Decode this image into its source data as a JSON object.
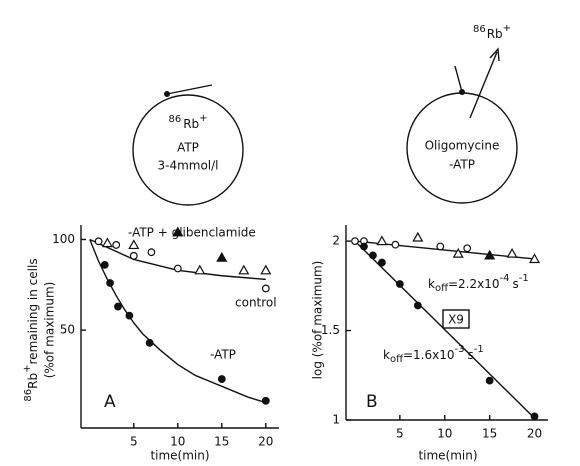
{
  "diagrams": [
    {
      "isotope": "86",
      "ion": "Rb",
      "charge": "+",
      "lines": [
        "ATP",
        "3-4mmol/l"
      ]
    },
    {
      "isotope": "86",
      "ion": "Rb",
      "charge": "+",
      "lines": [
        "Oligomycine",
        "-ATP"
      ],
      "released": {
        "isotope": "86",
        "ion": "Rb",
        "charge": "+"
      }
    }
  ],
  "chart_data": [
    {
      "type": "scatter",
      "panel": "A",
      "xlabel": "time(min)",
      "ylabel": {
        "isotope": "86",
        "ion": "Rb",
        "charge": "+",
        "text": "remaining in cells",
        "line2": "(%of maximum)"
      },
      "xlim": [
        -1,
        21.5
      ],
      "ylim": [
        -4,
        108
      ],
      "xticks": [
        5,
        10,
        15,
        20
      ],
      "yticks": [
        50,
        100
      ],
      "annotations": [
        "-ATP + glibenclamide",
        "control",
        "-ATP"
      ],
      "series": [
        {
          "name": "control",
          "marker": "circle-open",
          "x": [
            1,
            3,
            5,
            7,
            10,
            20
          ],
          "values": [
            99,
            97,
            91,
            93,
            84,
            73
          ]
        },
        {
          "marker": "triangle-open",
          "x": [
            2,
            5,
            12.5,
            17.5,
            20
          ],
          "values": [
            98,
            97,
            83,
            83,
            83
          ]
        },
        {
          "marker": "triangle-filled",
          "x": [
            10,
            15
          ],
          "values": [
            104,
            90
          ]
        },
        {
          "name": "-ATP",
          "marker": "circle-filled",
          "x": [
            1.7,
            2.3,
            3.2,
            4.5,
            6.8,
            15,
            20
          ],
          "values": [
            86,
            76,
            63,
            58,
            43,
            23,
            11
          ]
        }
      ],
      "fits": [
        {
          "x": [
            0,
            5,
            10,
            15,
            20
          ],
          "values": [
            100,
            89,
            83,
            80,
            78
          ]
        },
        {
          "x": [
            0,
            1,
            2,
            3,
            4,
            5,
            6,
            8,
            10,
            12,
            15,
            18,
            20
          ],
          "values": [
            100,
            88,
            78,
            69,
            61,
            54,
            48,
            39,
            31,
            25,
            19,
            13,
            10
          ]
        }
      ]
    },
    {
      "type": "scatter",
      "panel": "B",
      "xlabel": "time(min)",
      "ylabel": {
        "text": "log (%of maximum)"
      },
      "xlim": [
        -1,
        21.5
      ],
      "ylim": [
        1,
        2.09
      ],
      "xticks": [
        5,
        10,
        15,
        20
      ],
      "yticks": [
        1,
        1.5,
        2
      ],
      "annotations": [
        "X9"
      ],
      "rates": [
        {
          "k": "k",
          "sub": "off",
          "mantissa": "=2.2x10",
          "exp": "-4",
          "unit": "s",
          "unit_exp": "-1"
        },
        {
          "k": "k",
          "sub": "off",
          "mantissa": "=1.6x10",
          "exp": "-3",
          "unit": "s",
          "unit_exp": "-1"
        }
      ],
      "series": [
        {
          "marker": "circle-open",
          "x": [
            0,
            1,
            4.5,
            9.5,
            12.5
          ],
          "values": [
            2.0,
            2.0,
            1.98,
            1.97,
            1.96
          ]
        },
        {
          "marker": "triangle-open",
          "x": [
            3,
            7,
            11.5,
            17.5,
            20
          ],
          "values": [
            2.0,
            2.02,
            1.93,
            1.93,
            1.9
          ]
        },
        {
          "marker": "triangle-filled",
          "x": [
            15
          ],
          "values": [
            1.92
          ]
        },
        {
          "marker": "circle-filled",
          "x": [
            1,
            2,
            3,
            5,
            7,
            15,
            20
          ],
          "values": [
            1.97,
            1.92,
            1.88,
            1.76,
            1.64,
            1.22,
            1.02
          ]
        }
      ],
      "fits": [
        {
          "x": [
            0,
            20
          ],
          "values": [
            2.0,
            1.9
          ]
        },
        {
          "x": [
            0,
            20
          ],
          "values": [
            2.0,
            1.01
          ]
        }
      ]
    }
  ]
}
